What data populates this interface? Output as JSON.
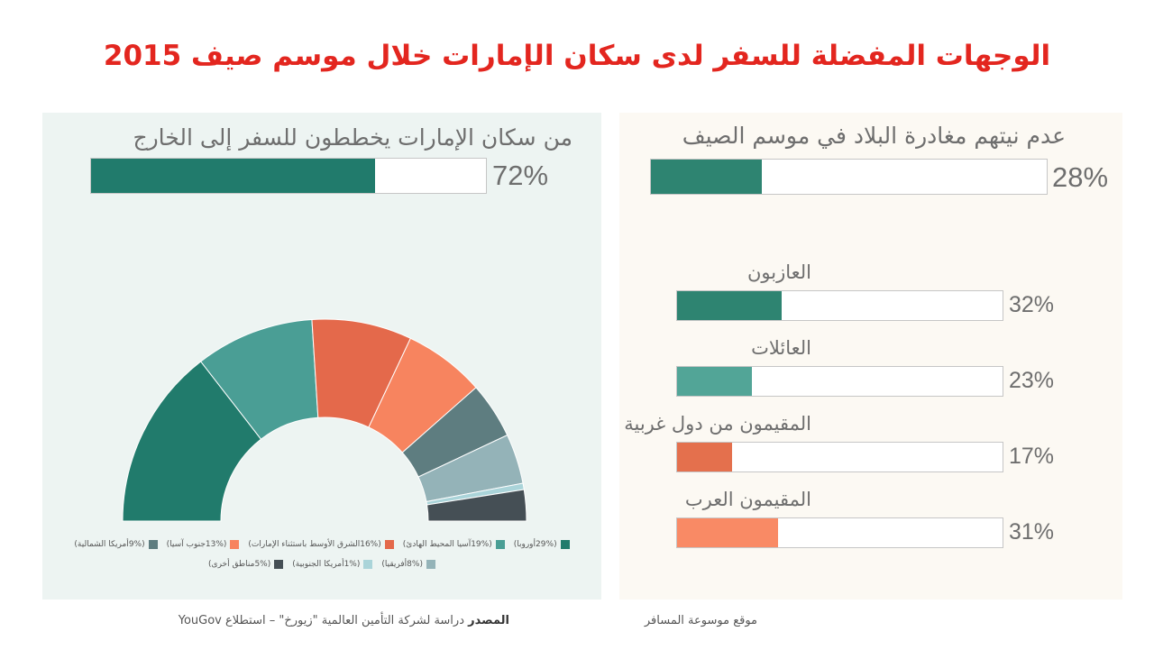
{
  "title": "الوجهات المفضلة للسفر لدى سكان الإمارات خلال موسم صيف 2015",
  "left_panel": {
    "heading": "من سكان الإمارات يخططون للسفر إلى الخارج",
    "percent_label": "72%",
    "percent_value": 72,
    "bar_color": "#217b6c"
  },
  "right_panel": {
    "heading": "عدم نيتهم مغادرة البلاد في موسم الصيف",
    "percent_label": "28%",
    "percent_value": 28,
    "bar_color": "#2e8471",
    "categories": [
      {
        "label": "العازبون",
        "percent_label": "32%",
        "value": 32,
        "color": "#2e8471"
      },
      {
        "label": "العائلات",
        "percent_label": "23%",
        "value": 23,
        "color": "#52a597"
      },
      {
        "label": "المقيمون من دول غربية",
        "percent_label": "17%",
        "value": 17,
        "color": "#e4704d"
      },
      {
        "label": "المقيمون العرب",
        "percent_label": "31%",
        "value": 31,
        "color": "#f98a65"
      }
    ]
  },
  "chart_data": {
    "type": "pie",
    "subtype": "half-donut",
    "slices": [
      {
        "name": "أوروبا",
        "value": 29,
        "legend": "(29%أوروبا)",
        "color": "#217b6c"
      },
      {
        "name": "آسيا المحيط الهادئ",
        "value": 19,
        "legend": "(19%آسيا المحيط الهادئ)",
        "color": "#4a9e95"
      },
      {
        "name": "الشرق الأوسط باستثناء الإمارات",
        "value": 16,
        "legend": "(16%الشرق الأوسط باستثناء الإمارات)",
        "color": "#e4694b"
      },
      {
        "name": "جنوب آسيا",
        "value": 13,
        "legend": "(13%جنوب آسيا)",
        "color": "#f7845f"
      },
      {
        "name": "أمريكا الشمالية",
        "value": 9,
        "legend": "(9%أمريكا الشمالية)",
        "color": "#5e7d80"
      },
      {
        "name": "أفريقيا",
        "value": 8,
        "legend": "(8%أفريقيا)",
        "color": "#94b3b8"
      },
      {
        "name": "أمريكا الجنوبية",
        "value": 1,
        "legend": "(1%أمريكا الجنوبية)",
        "color": "#aad4d9"
      },
      {
        "name": "مناطق أخرى",
        "value": 5,
        "legend": "(5%مناطق أخرى)",
        "color": "#454f55"
      }
    ],
    "legend_rows": [
      [
        0,
        1,
        2,
        3,
        4
      ],
      [
        5,
        6,
        7
      ]
    ]
  },
  "footer": {
    "source_label": "المصدر",
    "source_text": "دراسة لشركة التأمين العالمية \"زيورخ\" – استطلاع YouGov",
    "site": "موقع موسوعة المسافر"
  }
}
